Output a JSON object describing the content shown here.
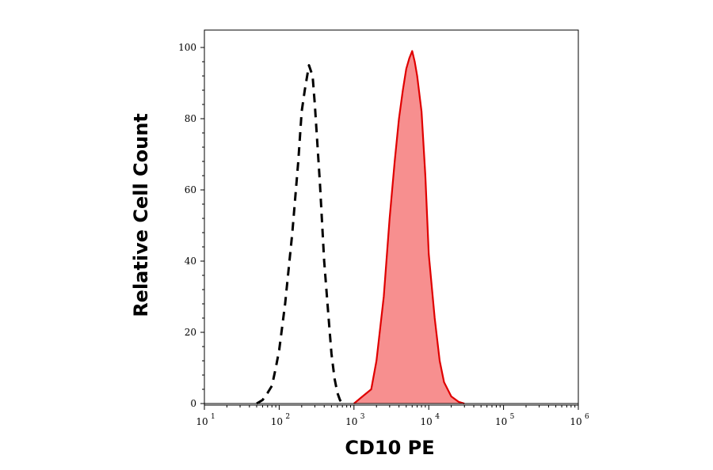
{
  "chart_data": {
    "type": "area",
    "xlabel": "CD10 PE",
    "ylabel": "Relative Cell Count",
    "x_scale": "log",
    "xlim": [
      10,
      1000000
    ],
    "ylim": [
      0,
      100
    ],
    "x_ticks": [
      {
        "base": "10",
        "exp": "1",
        "value": 10
      },
      {
        "base": "10",
        "exp": "2",
        "value": 100
      },
      {
        "base": "10",
        "exp": "3",
        "value": 1000
      },
      {
        "base": "10",
        "exp": "4",
        "value": 10000
      },
      {
        "base": "10",
        "exp": "5",
        "value": 100000
      },
      {
        "base": "10",
        "exp": "6",
        "value": 1000000
      }
    ],
    "y_ticks": [
      "0",
      "20",
      "40",
      "60",
      "80",
      "100"
    ],
    "y_tick_values": [
      0,
      20,
      40,
      60,
      80,
      100
    ],
    "grid": false,
    "series": [
      {
        "style": "dashed",
        "color": "#000000",
        "fill": "none",
        "x": [
          50,
          60,
          70,
          80,
          90,
          100,
          120,
          150,
          180,
          200,
          220,
          250,
          280,
          300,
          350,
          400,
          450,
          500,
          550,
          600,
          650,
          700
        ],
        "y": [
          0,
          1,
          3,
          5,
          10,
          15,
          28,
          48,
          68,
          82,
          88,
          95,
          92,
          84,
          62,
          40,
          26,
          14,
          7,
          3,
          1,
          0
        ]
      },
      {
        "style": "solid",
        "color": "#e00000",
        "fill": "#f78f8f",
        "x": [
          1000,
          1300,
          1700,
          2000,
          2500,
          3000,
          3500,
          4000,
          4500,
          5000,
          5500,
          6000,
          6500,
          7000,
          8000,
          9000,
          10000,
          12000,
          14000,
          16000,
          20000,
          25000,
          30000
        ],
        "y": [
          0,
          2,
          4,
          12,
          30,
          52,
          68,
          80,
          88,
          94,
          97,
          99,
          96,
          92,
          82,
          64,
          42,
          24,
          12,
          6,
          2,
          0.5,
          0
        ]
      }
    ]
  }
}
